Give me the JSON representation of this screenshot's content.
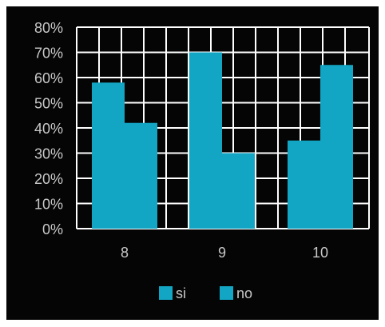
{
  "chart_data": {
    "type": "bar",
    "categories": [
      "8",
      "9",
      "10"
    ],
    "series": [
      {
        "name": "si",
        "values": [
          58,
          70,
          35
        ]
      },
      {
        "name": "no",
        "values": [
          42,
          30,
          65
        ]
      }
    ],
    "ylim": [
      0,
      80
    ],
    "yticks": [
      "0%",
      "10%",
      "20%",
      "30%",
      "40%",
      "50%",
      "60%",
      "70%",
      "80%"
    ],
    "grid": true,
    "legend_position": "bottom",
    "colors": {
      "background": "#050505",
      "bar": "#13a6c4",
      "grid": "#ffffff",
      "text": "#c8c8c8"
    }
  }
}
